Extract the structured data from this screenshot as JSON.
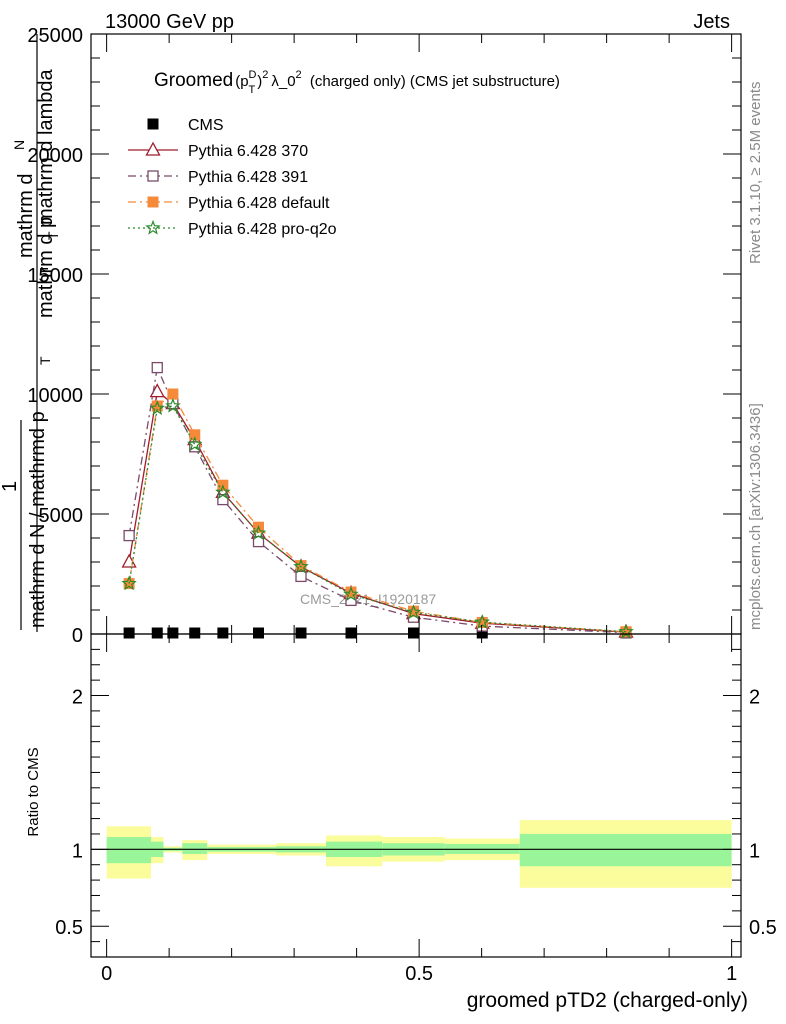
{
  "header": {
    "energy": "13000 GeV pp",
    "category": "Jets"
  },
  "side_labels": {
    "rivet": "Rivet 3.1.10, ≥ 2.5M events",
    "mcplots": "mcplots.cern.ch [arXiv:1306.3436]"
  },
  "watermark": "CMS_2021_I1920187",
  "chart_data": [
    {
      "type": "line",
      "title": "Groomed (p_T^D)^2 λ_0^2  (charged only) (CMS jet substructure)",
      "title_parts": {
        "main": "Groomed",
        "p": "(p",
        "sup_d": "D",
        "sub_t": "T",
        "close": ")",
        "sup_2": "2",
        "lambda": "λ_0",
        "sup_2b": "2",
        "rest": " (charged only) (CMS jet substructure)"
      },
      "ylabel_lines": [
        "mathrm d",
        "N",
        "mathrm d p",
        "T",
        " mathrm d lambda",
        "1",
        "mathrm d N / mathrmd p",
        "T",
        "mathrmd p"
      ],
      "ylim": [
        0,
        25000
      ],
      "xlim": [
        -0.025,
        1.015
      ],
      "yticks": [
        0,
        5000,
        10000,
        15000,
        20000,
        25000
      ],
      "ytick_labels": [
        "0",
        "5000",
        "10000",
        "15000",
        "20000",
        "25000"
      ],
      "x": [
        0.036,
        0.081,
        0.106,
        0.141,
        0.186,
        0.243,
        0.311,
        0.391,
        0.491,
        0.601,
        0.831
      ],
      "series": [
        {
          "name": "CMS",
          "color": "#000000",
          "marker": "square-filled",
          "values": [
            0,
            0,
            0,
            0,
            0,
            0,
            0,
            0,
            0,
            0,
            0
          ]
        },
        {
          "name": "Pythia 6.428 370",
          "color": "#a01c2c",
          "marker": "triangle-open",
          "dash": "",
          "values": [
            3000,
            10100,
            9600,
            8100,
            5900,
            4200,
            2800,
            1700,
            850,
            450,
            80
          ]
        },
        {
          "name": "Pythia 6.428 391",
          "color": "#7a4a6a",
          "marker": "square-open",
          "dash": "8,4,2,4",
          "values": [
            4100,
            11100,
            9600,
            7800,
            5600,
            3850,
            2400,
            1400,
            700,
            330,
            55
          ]
        },
        {
          "name": "Pythia 6.428 default",
          "color": "#f58a3a",
          "marker": "square-filled",
          "dash": "8,4,2,4",
          "values": [
            2100,
            9500,
            10000,
            8300,
            6200,
            4450,
            2850,
            1750,
            950,
            480,
            95
          ]
        },
        {
          "name": "Pythia 6.428 pro-q2o",
          "color": "#2a8a2a",
          "marker": "star",
          "dash": "2,3",
          "values": [
            2100,
            9400,
            9500,
            7900,
            5900,
            4200,
            2800,
            1650,
            900,
            490,
            90
          ]
        }
      ]
    },
    {
      "type": "area",
      "ylabel": "Ratio to CMS",
      "ylim": [
        0.3,
        2.4
      ],
      "yticks": [
        0.5,
        1,
        2
      ],
      "ytick_labels": [
        "0.5",
        "1",
        "2"
      ],
      "xlabel": "groomed pTD2 (charged-only)",
      "xticks": [
        0,
        0.5,
        1
      ],
      "xtick_labels": [
        "0",
        "0.5",
        "1"
      ],
      "bins": [
        {
          "x0": 0.0,
          "x1": 0.071,
          "inner": [
            0.91,
            1.08
          ],
          "outer": [
            0.81,
            1.15
          ]
        },
        {
          "x0": 0.071,
          "x1": 0.091,
          "inner": [
            0.95,
            1.05
          ],
          "outer": [
            0.91,
            1.08
          ]
        },
        {
          "x0": 0.091,
          "x1": 0.121,
          "inner": [
            0.99,
            1.01
          ],
          "outer": [
            0.98,
            1.02
          ]
        },
        {
          "x0": 0.121,
          "x1": 0.161,
          "inner": [
            0.97,
            1.04
          ],
          "outer": [
            0.93,
            1.06
          ]
        },
        {
          "x0": 0.161,
          "x1": 0.211,
          "inner": [
            0.985,
            1.015
          ],
          "outer": [
            0.97,
            1.03
          ]
        },
        {
          "x0": 0.211,
          "x1": 0.271,
          "inner": [
            0.985,
            1.015
          ],
          "outer": [
            0.97,
            1.03
          ]
        },
        {
          "x0": 0.271,
          "x1": 0.351,
          "inner": [
            0.98,
            1.02
          ],
          "outer": [
            0.96,
            1.04
          ]
        },
        {
          "x0": 0.351,
          "x1": 0.441,
          "inner": [
            0.95,
            1.05
          ],
          "outer": [
            0.89,
            1.09
          ]
        },
        {
          "x0": 0.441,
          "x1": 0.541,
          "inner": [
            0.96,
            1.04
          ],
          "outer": [
            0.92,
            1.08
          ]
        },
        {
          "x0": 0.541,
          "x1": 0.661,
          "inner": [
            0.97,
            1.035
          ],
          "outer": [
            0.93,
            1.07
          ]
        },
        {
          "x0": 0.661,
          "x1": 1.0,
          "inner": [
            0.89,
            1.1
          ],
          "outer": [
            0.75,
            1.19
          ]
        }
      ],
      "colors": {
        "inner": "#9af59a",
        "outer": "#fbfc9c"
      }
    }
  ]
}
